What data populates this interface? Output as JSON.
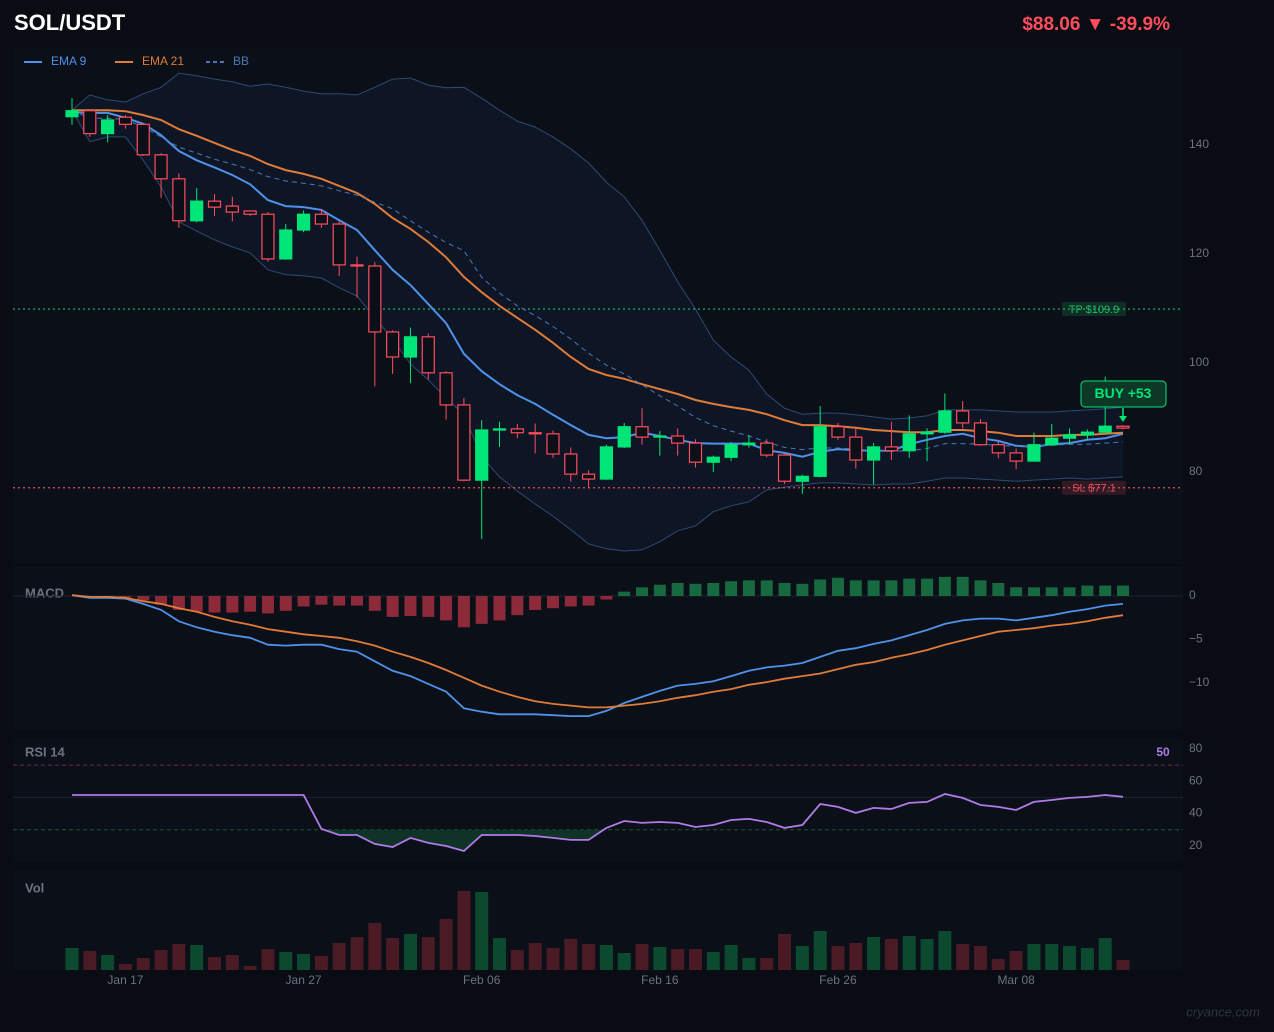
{
  "chart_data": [
    {
      "type": "candlestick",
      "title": "SOL/USDT",
      "subtitle": "$88.06  ▼ -39.9%",
      "categories": [
        null,
        null,
        null,
        "Jan 17",
        null,
        null,
        null,
        null,
        null,
        null,
        null,
        null,
        null,
        "Jan 27",
        null,
        null,
        null,
        null,
        null,
        null,
        null,
        null,
        null,
        "Feb 06",
        null,
        null,
        null,
        null,
        null,
        null,
        null,
        null,
        null,
        "Feb 16",
        null,
        null,
        null,
        null,
        null,
        null,
        null,
        null,
        null,
        "Feb 26",
        null,
        null,
        null,
        null,
        null,
        null,
        null,
        null,
        null,
        "Mar 08",
        null,
        null,
        null,
        null,
        null,
        null
      ],
      "open": [
        145.2,
        146.3,
        142.1,
        145.1,
        143.8,
        138.2,
        133.8,
        126.1,
        129.7,
        128.8,
        127.9,
        127.3,
        119.1,
        124.4,
        127.3,
        125.5,
        118.0,
        117.8,
        105.7,
        101.1,
        104.8,
        98.2,
        92.3,
        78.5,
        87.7,
        87.9,
        87.2,
        87.0,
        83.3,
        79.6,
        78.7,
        84.6,
        88.3,
        86.4,
        86.6,
        85.3,
        81.8,
        82.7,
        85.0,
        85.3,
        83.1,
        78.3,
        79.2,
        88.3,
        86.4,
        82.2,
        84.6,
        83.9,
        87.0,
        87.3,
        91.2,
        89.0,
        85.0,
        83.5,
        82.0,
        85.0,
        86.2,
        86.8,
        87.3,
        88.4
      ],
      "high": [
        148.6,
        146.5,
        145.5,
        145.5,
        144.0,
        138.5,
        134.8,
        132.1,
        131.0,
        130.5,
        128.0,
        127.7,
        125.5,
        128.0,
        128.3,
        126.0,
        119.5,
        118.5,
        106.0,
        106.5,
        105.4,
        98.5,
        93.6,
        89.5,
        89.2,
        88.8,
        88.9,
        87.6,
        84.5,
        80.3,
        85.0,
        89.0,
        91.7,
        87.5,
        88.0,
        86.0,
        83.0,
        85.5,
        86.8,
        86.0,
        83.4,
        79.5,
        92.1,
        89.0,
        88.3,
        85.3,
        89.2,
        90.4,
        88.0,
        94.4,
        93.0,
        89.7,
        85.5,
        84.3,
        87.2,
        88.8,
        88.0,
        87.8,
        97.5,
        88.6
      ],
      "low": [
        143.7,
        141.5,
        140.5,
        143.0,
        138.0,
        130.3,
        124.8,
        125.8,
        127.0,
        126.0,
        127.0,
        118.6,
        118.9,
        124.0,
        124.8,
        116.0,
        112.0,
        95.7,
        98.0,
        96.3,
        97.0,
        89.6,
        78.3,
        67.7,
        84.6,
        86.2,
        83.4,
        82.6,
        78.2,
        77.0,
        78.5,
        84.4,
        85.0,
        83.0,
        83.0,
        80.8,
        80.0,
        82.0,
        84.5,
        82.7,
        77.8,
        76.0,
        79.0,
        85.9,
        80.6,
        77.7,
        82.2,
        82.6,
        82.0,
        87.0,
        88.0,
        84.8,
        82.5,
        80.5,
        81.9,
        84.8,
        85.0,
        85.8,
        87.3,
        87.8
      ],
      "close": [
        146.3,
        142.1,
        144.6,
        143.8,
        138.2,
        133.8,
        126.1,
        129.7,
        128.6,
        127.7,
        127.3,
        119.1,
        124.4,
        127.3,
        125.5,
        118.0,
        117.8,
        105.7,
        101.1,
        104.8,
        98.2,
        92.3,
        78.5,
        87.7,
        87.9,
        87.2,
        87.0,
        83.3,
        79.6,
        78.7,
        84.6,
        88.3,
        86.4,
        86.6,
        85.3,
        81.8,
        82.7,
        85.0,
        85.3,
        83.1,
        78.3,
        79.2,
        88.3,
        86.4,
        82.2,
        84.6,
        83.9,
        87.0,
        87.3,
        91.2,
        89.0,
        85.0,
        83.5,
        82.0,
        85.0,
        86.2,
        86.8,
        87.3,
        88.4,
        88.06
      ],
      "up_color": "#00e676",
      "down_color": "#ff4d5e",
      "series": [
        {
          "name": "EMA 9",
          "color": "#4f92ea",
          "values": [
            146.0,
            145.9,
            145.9,
            145.0,
            143.9,
            141.8,
            138.9,
            137.2,
            135.9,
            134.5,
            132.8,
            129.9,
            128.8,
            128.6,
            128.1,
            126.2,
            124.4,
            120.7,
            117.1,
            114.3,
            110.8,
            107.3,
            101.7,
            98.5,
            96.1,
            94.1,
            92.5,
            90.5,
            88.6,
            86.8,
            86.2,
            86.4,
            87.2,
            86.6,
            85.9,
            85.3,
            85.2,
            85.2,
            85.2,
            84.0,
            83.5,
            82.8,
            83.7,
            84.2,
            84.0,
            83.9,
            83.9,
            85.1,
            85.9,
            86.6,
            87.0,
            86.2,
            85.7,
            84.8,
            84.6,
            85.1,
            85.3,
            85.9,
            86.2,
            87.0
          ]
        },
        {
          "name": "EMA 21",
          "color": "#e07b39",
          "values": [
            146.4,
            146.4,
            146.4,
            146.2,
            145.5,
            144.6,
            142.9,
            141.7,
            140.4,
            139.1,
            138.0,
            136.5,
            135.4,
            134.7,
            133.8,
            132.5,
            131.2,
            129.2,
            126.6,
            124.6,
            122.2,
            119.4,
            115.8,
            113.0,
            110.5,
            108.3,
            106.1,
            103.7,
            101.1,
            98.9,
            97.8,
            97.1,
            96.1,
            95.2,
            94.3,
            93.2,
            92.5,
            91.9,
            91.4,
            90.6,
            89.5,
            88.6,
            88.6,
            88.4,
            88.1,
            87.7,
            87.5,
            87.3,
            87.3,
            87.7,
            87.7,
            87.5,
            87.2,
            86.6,
            86.6,
            86.6,
            86.8,
            86.8,
            87.0,
            87.2
          ]
        },
        {
          "name": "BB",
          "color": "#4a78b8",
          "dash": true,
          "fill": "#0e1626",
          "values": [
            146.4,
            144.9,
            144.9,
            144.7,
            143.3,
            141.5,
            139.6,
            138.5,
            137.4,
            136.5,
            135.5,
            134.2,
            133.4,
            133.0,
            132.5,
            131.6,
            130.8,
            129.5,
            128.3,
            126.1,
            124.0,
            122.1,
            120.6,
            115.7,
            112.8,
            110.5,
            108.7,
            106.7,
            104.4,
            101.8,
            99.6,
            98.0,
            96.0,
            94.0,
            92.1,
            90.0,
            88.5,
            87.5,
            86.6,
            85.5,
            84.5,
            84.1,
            84.4,
            84.4,
            84.2,
            83.9,
            83.8,
            83.9,
            84.3,
            85.2,
            85.2,
            85.1,
            84.9,
            84.7,
            84.8,
            84.9,
            85.1,
            85.1,
            85.3,
            85.5
          ],
          "upper": [
            146.4,
            149.2,
            148.3,
            147.9,
            149.4,
            150.6,
            153.2,
            152.7,
            152.1,
            151.6,
            150.8,
            151.2,
            150.6,
            149.9,
            149.4,
            149.4,
            149.2,
            150.6,
            152.1,
            152.3,
            151.0,
            150.5,
            150.6,
            148.6,
            146.4,
            144.4,
            143.3,
            141.5,
            139.3,
            136.7,
            133.2,
            130.5,
            126.2,
            120.7,
            114.9,
            109.9,
            104.2,
            101.1,
            98.7,
            94.3,
            91.7,
            90.6,
            90.8,
            90.8,
            90.5,
            90.1,
            89.7,
            89.9,
            90.3,
            91.4,
            91.4,
            91.4,
            91.2,
            91.0,
            91.0,
            91.0,
            91.2,
            91.4,
            91.6,
            91.9
          ],
          "lower": [
            146.4,
            140.6,
            141.5,
            141.5,
            137.2,
            132.3,
            125.9,
            124.2,
            122.6,
            121.3,
            120.2,
            117.1,
            116.2,
            116.0,
            115.6,
            113.8,
            112.3,
            108.3,
            104.4,
            99.8,
            96.9,
            93.6,
            90.5,
            82.8,
            79.1,
            76.5,
            74.1,
            71.9,
            69.4,
            66.8,
            65.9,
            65.5,
            65.7,
            67.2,
            69.2,
            70.1,
            72.7,
            73.8,
            74.5,
            76.7,
            77.2,
            77.6,
            78.0,
            78.0,
            77.8,
            77.6,
            77.8,
            77.8,
            78.3,
            78.9,
            78.9,
            78.7,
            78.5,
            78.3,
            78.5,
            78.7,
            78.9,
            78.7,
            78.9,
            79.1
          ]
        }
      ],
      "levels": [
        {
          "value": 109.9,
          "label": "TP $109.9",
          "color": "#1fbf6a"
        },
        {
          "value": 77.1,
          "label": "SL $77.1",
          "color": "#e0505f"
        }
      ],
      "annotation": "BUY  +53",
      "ylim": [
        63,
        157
      ],
      "yticks": [
        80,
        100,
        120,
        140
      ],
      "legend": "top-left"
    },
    {
      "type": "macd",
      "title": "MACD",
      "histogram": {
        "values": [
          0,
          -0.1,
          -0.1,
          -0.2,
          -0.5,
          -1.0,
          -1.6,
          -1.8,
          -1.9,
          -1.9,
          -1.8,
          -2.0,
          -1.7,
          -1.2,
          -1.0,
          -1.1,
          -1.1,
          -1.7,
          -2.4,
          -2.3,
          -2.4,
          -2.8,
          -3.6,
          -3.2,
          -2.8,
          -2.2,
          -1.6,
          -1.4,
          -1.2,
          -1.1,
          -0.4,
          0.5,
          1.0,
          1.3,
          1.5,
          1.4,
          1.5,
          1.7,
          1.8,
          1.8,
          1.5,
          1.4,
          1.9,
          2.1,
          1.8,
          1.8,
          1.8,
          2.0,
          2.0,
          2.2,
          2.2,
          1.8,
          1.5,
          1.0,
          1.0,
          1.0,
          1.0,
          1.2,
          1.2,
          1.2
        ],
        "up_color": "#17693f",
        "down_color": "#8c2a3a"
      },
      "series": [
        {
          "color": "#4f92ea",
          "values": [
            0.1,
            -0.2,
            -0.2,
            -0.3,
            -0.9,
            -1.6,
            -2.9,
            -3.6,
            -4.1,
            -4.5,
            -4.8,
            -5.6,
            -5.7,
            -5.6,
            -5.6,
            -6.1,
            -6.4,
            -7.5,
            -8.6,
            -9.2,
            -10.1,
            -11.0,
            -12.9,
            -13.3,
            -13.6,
            -13.6,
            -13.6,
            -13.7,
            -13.8,
            -13.8,
            -13.2,
            -12.3,
            -11.6,
            -10.9,
            -10.3,
            -10.1,
            -9.8,
            -9.2,
            -8.6,
            -8.2,
            -8.0,
            -7.7,
            -7.0,
            -6.3,
            -6.0,
            -5.5,
            -5.1,
            -4.5,
            -3.9,
            -3.2,
            -2.8,
            -2.6,
            -2.6,
            -2.8,
            -2.5,
            -2.2,
            -1.8,
            -1.5,
            -1.1,
            -0.9
          ]
        },
        {
          "color": "#e07b39",
          "values": [
            0.1,
            -0.1,
            -0.1,
            -0.2,
            -0.6,
            -0.9,
            -1.4,
            -1.8,
            -2.4,
            -2.9,
            -3.3,
            -3.8,
            -4.1,
            -4.4,
            -4.6,
            -4.8,
            -5.2,
            -5.7,
            -6.4,
            -7.0,
            -7.7,
            -8.5,
            -9.4,
            -10.3,
            -11.0,
            -11.6,
            -12.1,
            -12.4,
            -12.6,
            -12.8,
            -12.8,
            -12.6,
            -12.4,
            -12.1,
            -11.7,
            -11.4,
            -11.0,
            -10.7,
            -10.2,
            -9.9,
            -9.5,
            -9.2,
            -8.9,
            -8.4,
            -7.9,
            -7.6,
            -7.1,
            -6.7,
            -6.2,
            -5.6,
            -5.1,
            -4.6,
            -4.1,
            -3.9,
            -3.7,
            -3.4,
            -3.2,
            -2.9,
            -2.5,
            -2.2
          ]
        }
      ],
      "ylim": [
        -15.4,
        3.6
      ],
      "yticks": [
        0,
        {
          "value": -5,
          "label": "−5"
        },
        {
          "value": -10,
          "label": "−10"
        }
      ]
    },
    {
      "type": "line",
      "title": "RSI 14",
      "last_label": "50",
      "series": [
        {
          "color": "#b07be8",
          "values": [
            51.5,
            51.5,
            51.5,
            51.5,
            51.5,
            51.5,
            51.5,
            51.5,
            51.5,
            51.5,
            51.5,
            51.5,
            51.5,
            51.5,
            30.5,
            26.7,
            26.7,
            21.2,
            19.3,
            24.9,
            21.8,
            19.9,
            16.8,
            26.7,
            26.7,
            26.7,
            26.1,
            24.9,
            23.7,
            23.7,
            31.1,
            35.4,
            34.2,
            34.8,
            34.2,
            31.7,
            32.9,
            36.0,
            36.7,
            34.8,
            31.1,
            32.9,
            45.9,
            44.1,
            40.4,
            43.5,
            42.8,
            46.6,
            47.2,
            52.1,
            49.7,
            45.3,
            44.1,
            42.2,
            47.2,
            48.4,
            49.7,
            50.3,
            51.5,
            50.4
          ]
        }
      ],
      "levels": [
        {
          "value": 70,
          "color": "#6e2a40",
          "dash": true
        },
        {
          "value": 50,
          "color": "#1d2430",
          "dash": false
        },
        {
          "value": 30,
          "color": "#1c5a3a",
          "dash": true
        }
      ],
      "oversold_fill": "#0f3326",
      "ylim": [
        10,
        86.8
      ],
      "yticks": [
        20,
        40,
        60,
        80
      ]
    },
    {
      "type": "bar",
      "title": "Vol",
      "up_color": "#0c4a30",
      "down_color": "#4a1a25",
      "values": [
        22,
        19,
        15,
        6,
        12,
        20,
        26,
        25,
        13,
        15,
        4,
        21,
        18,
        16,
        14,
        27,
        33,
        47,
        32,
        36,
        33,
        51,
        79,
        78,
        32,
        20,
        27,
        22,
        31,
        26,
        25,
        17,
        26,
        23,
        21,
        21,
        18,
        25,
        12,
        12,
        36,
        24,
        39,
        24,
        27,
        33,
        31,
        34,
        31,
        39,
        26,
        24,
        11,
        19,
        26,
        26,
        24,
        22,
        32,
        10
      ],
      "ylim": [
        0,
        95
      ]
    }
  ],
  "watermark": "cryance.com"
}
